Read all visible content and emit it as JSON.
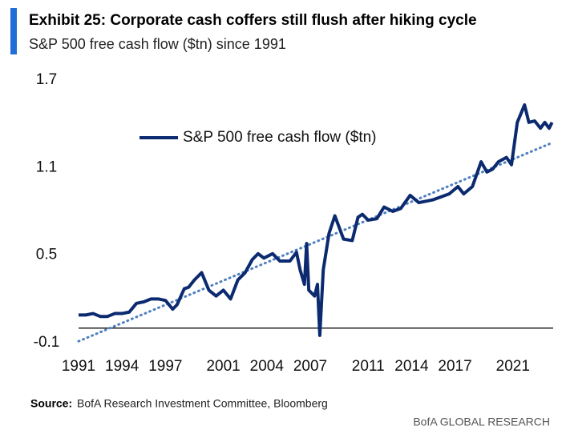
{
  "chart_data": {
    "type": "line",
    "title": "Exhibit 25: Corporate cash coffers still flush after hiking cycle",
    "subtitle": "S&P 500 free cash flow ($tn) since 1991",
    "series": [
      {
        "name": "S&P 500 free cash flow ($tn)",
        "color": "#0b2a6f",
        "x": [
          1991,
          1991.5,
          1992,
          1992.5,
          1993,
          1993.5,
          1994,
          1994.5,
          1995,
          1995.5,
          1996,
          1996.5,
          1997,
          1997.5,
          1997.8,
          1998.3,
          1998.6,
          1999,
          1999.5,
          2000,
          2000.5,
          2001,
          2001.5,
          2002,
          2002.5,
          2003,
          2003.4,
          2003.8,
          2004.4,
          2004.9,
          2005.6,
          2006.05,
          2006.3,
          2006.6,
          2006.75,
          2006.9,
          2007.3,
          2007.5,
          2007.66,
          2007.9,
          2008.3,
          2008.7,
          2009.3,
          2009.9,
          2010.3,
          2010.6,
          2011,
          2011.6,
          2012.1,
          2012.7,
          2013.25,
          2013.9,
          2014.5,
          2015.5,
          2016.6,
          2017.2,
          2017.6,
          2018.2,
          2018.8,
          2019.2,
          2019.6,
          2020,
          2020.55,
          2020.9,
          2021.3,
          2021.8,
          2022.1,
          2022.5,
          2022.9,
          2023.2,
          2023.5,
          2023.7
        ],
        "values": [
          0.09,
          0.09,
          0.1,
          0.08,
          0.08,
          0.1,
          0.1,
          0.11,
          0.17,
          0.18,
          0.2,
          0.2,
          0.19,
          0.13,
          0.16,
          0.27,
          0.28,
          0.33,
          0.38,
          0.26,
          0.22,
          0.26,
          0.2,
          0.33,
          0.38,
          0.47,
          0.51,
          0.48,
          0.51,
          0.46,
          0.46,
          0.52,
          0.4,
          0.3,
          0.58,
          0.26,
          0.22,
          0.3,
          -0.05,
          0.4,
          0.65,
          0.77,
          0.61,
          0.6,
          0.76,
          0.78,
          0.74,
          0.75,
          0.83,
          0.8,
          0.82,
          0.91,
          0.86,
          0.88,
          0.92,
          0.97,
          0.92,
          0.97,
          1.14,
          1.07,
          1.09,
          1.14,
          1.17,
          1.12,
          1.41,
          1.53,
          1.41,
          1.42,
          1.37,
          1.41,
          1.37,
          1.41
        ]
      }
    ],
    "trend": {
      "color": "#4f7fbf",
      "x": [
        1991,
        2023.7
      ],
      "values": [
        -0.09,
        1.27
      ]
    },
    "xlim": [
      1991,
      2024
    ],
    "xticks": [
      1991,
      1994,
      1997,
      2001,
      2004,
      2007,
      2011,
      2014,
      2017,
      2021
    ],
    "ylim": [
      -0.1,
      1.7
    ],
    "yticks": [
      -0.1,
      0.5,
      1.1,
      1.7
    ],
    "zero_line": true,
    "legend": "top-left",
    "source_label": "Source:",
    "source": "BofA Research Investment Committee, Bloomberg",
    "brand": "BofA GLOBAL RESEARCH"
  }
}
